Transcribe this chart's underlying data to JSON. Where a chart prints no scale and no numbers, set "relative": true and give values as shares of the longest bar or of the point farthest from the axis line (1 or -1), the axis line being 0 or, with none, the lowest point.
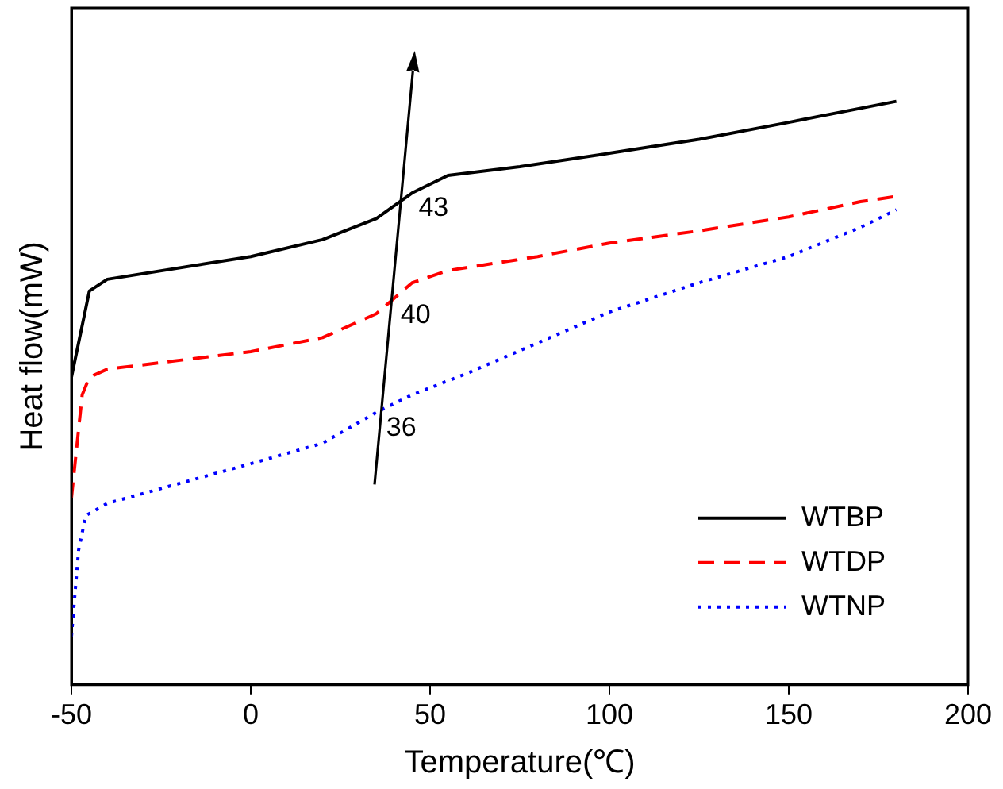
{
  "chart_data": {
    "type": "line",
    "xlabel": "Temperature(℃)",
    "ylabel": "Heat flow(mW)",
    "relative": true,
    "xlim": [
      -50,
      200
    ],
    "xticks": [
      -50,
      0,
      50,
      100,
      150,
      200
    ],
    "grid": false,
    "legend": "bottom right",
    "marker": "none",
    "series": [
      {
        "name": "WTBP",
        "color": "#000000",
        "line_style": "solid",
        "x": [
          -50,
          -45,
          -40,
          0,
          20,
          35,
          45,
          55,
          75,
          100,
          125,
          150,
          180
        ],
        "values": [
          0.527,
          0.675,
          0.695,
          0.734,
          0.763,
          0.799,
          0.843,
          0.873,
          0.888,
          0.911,
          0.935,
          0.964,
          1
        ]
      },
      {
        "name": "WTDP",
        "color": "#ff0000",
        "line_style": "dashed",
        "x": [
          -50,
          -47,
          -45,
          -40,
          0,
          20,
          35,
          45,
          55,
          80,
          100,
          125,
          150,
          170,
          180
        ],
        "values": [
          0.32,
          0.497,
          0.527,
          0.541,
          0.571,
          0.595,
          0.636,
          0.689,
          0.71,
          0.734,
          0.757,
          0.778,
          0.802,
          0.828,
          0.837
        ]
      },
      {
        "name": "WTNP",
        "color": "#0000ff",
        "line_style": "dotted",
        "x": [
          -50,
          -48,
          -46,
          -40,
          0,
          20,
          35,
          45,
          60,
          80,
          100,
          125,
          150,
          170,
          180
        ],
        "values": [
          0.083,
          0.231,
          0.29,
          0.311,
          0.379,
          0.414,
          0.467,
          0.497,
          0.533,
          0.586,
          0.639,
          0.689,
          0.734,
          0.784,
          0.814
        ]
      }
    ],
    "annotations": [
      {
        "text": "43",
        "x": 45,
        "y": 0.843
      },
      {
        "text": "40",
        "x": 40,
        "y": 0.66
      },
      {
        "text": "36",
        "x": 36,
        "y": 0.467
      }
    ]
  }
}
